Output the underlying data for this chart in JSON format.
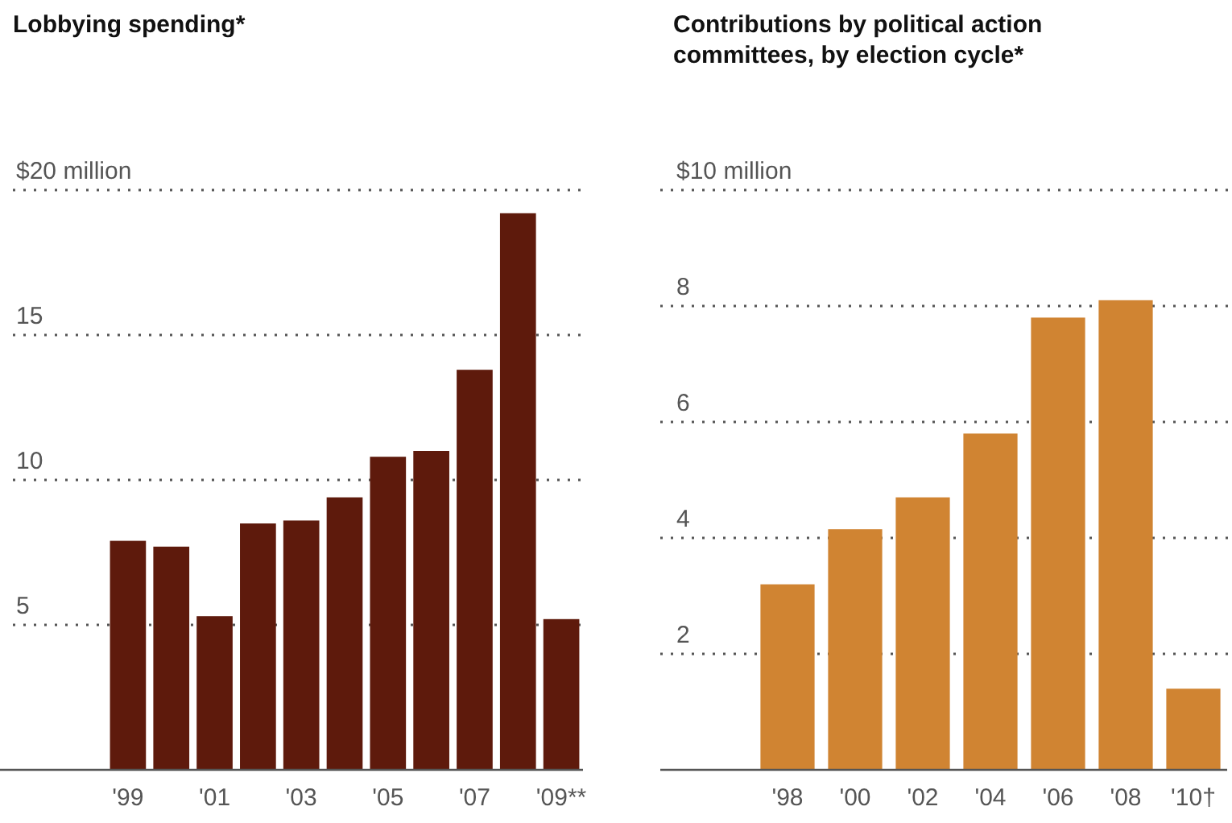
{
  "chart_data": [
    {
      "type": "bar",
      "title": "Lobbying spending*",
      "categories": [
        "'99",
        null,
        "'01",
        null,
        "'03",
        null,
        "'05",
        null,
        "'07",
        null,
        "'09**"
      ],
      "values": [
        7.9,
        7.7,
        5.3,
        8.5,
        8.6,
        9.4,
        10.8,
        11.0,
        13.8,
        19.2,
        5.2
      ],
      "color": "#5e1a0c",
      "ylim": [
        0,
        20
      ],
      "yticks": [
        {
          "value": 5,
          "label": "5"
        },
        {
          "value": 10,
          "label": "10"
        },
        {
          "value": 15,
          "label": "15"
        },
        {
          "value": 20,
          "label": "$20 million"
        }
      ],
      "grid": "y"
    },
    {
      "type": "bar",
      "title": "Contributions by political action committees, by election cycle*",
      "categories": [
        "'98",
        "'00",
        "'02",
        "'04",
        "'06",
        "'08",
        "'10†"
      ],
      "values": [
        3.2,
        4.15,
        4.7,
        5.8,
        7.8,
        8.1,
        1.4
      ],
      "color": "#d08432",
      "ylim": [
        0,
        10
      ],
      "yticks": [
        {
          "value": 2,
          "label": "2"
        },
        {
          "value": 4,
          "label": "4"
        },
        {
          "value": 6,
          "label": "6"
        },
        {
          "value": 8,
          "label": "8"
        },
        {
          "value": 10,
          "label": "$10 million"
        }
      ],
      "grid": "y"
    }
  ]
}
